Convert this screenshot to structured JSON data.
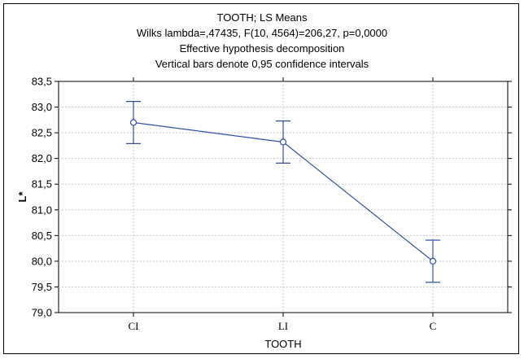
{
  "chart_data": {
    "type": "line",
    "title_lines": [
      "TOOTH; LS Means",
      "Wilks lambda=,47435, F(10, 4564)=206,27, p=0,0000",
      "Effective hypothesis decomposition",
      "Vertical bars denote 0,95 confidence intervals"
    ],
    "xlabel": "TOOTH",
    "ylabel": "L*",
    "categories": [
      "CI",
      "LI",
      "C"
    ],
    "series": [
      {
        "values": [
          82.7,
          82.32,
          80.0
        ],
        "ci_lower": [
          82.29,
          81.91,
          79.59
        ],
        "ci_upper": [
          83.11,
          82.73,
          80.41
        ]
      }
    ],
    "ylim": [
      79.0,
      83.5
    ],
    "yticks": [
      "79,0",
      "79,5",
      "80,0",
      "80,5",
      "81,0",
      "81,5",
      "82,0",
      "82,5",
      "83,0",
      "83,5"
    ],
    "ytick_values": [
      79.0,
      79.5,
      80.0,
      80.5,
      81.0,
      81.5,
      82.0,
      82.5,
      83.0,
      83.5
    ],
    "grid": true,
    "line_color": "#3350a5",
    "marker": "open-circle"
  }
}
